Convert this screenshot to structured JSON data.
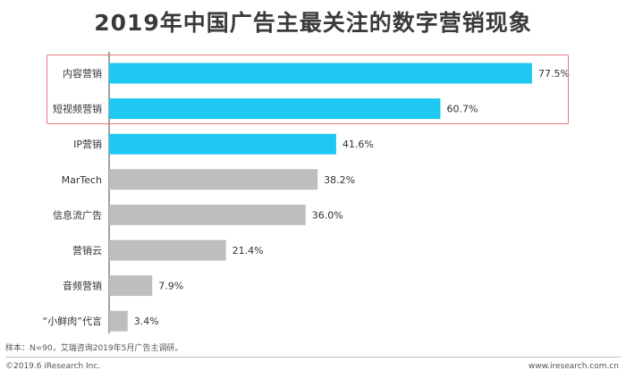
{
  "title": "2019年中国广告主最关注的数字营销现象",
  "note": "样本：N=90，艾瑞咨询2019年5月广告主调研。",
  "copyright": "©2019.6 iResearch Inc.",
  "website": "www.iresearch.com.cn",
  "colors": {
    "highlight_bar": "#1ec8f0",
    "normal_bar": "#bfbdbe",
    "highlight_box": "#e8797f",
    "axis": "#444444"
  },
  "chart_data": {
    "type": "bar",
    "orientation": "horizontal",
    "categories": [
      "内容营销",
      "短视频营销",
      "IP营销",
      "MarTech",
      "信息流广告",
      "营销云",
      "音频营销",
      "“小鲜肉”代言"
    ],
    "values": [
      77.5,
      60.7,
      41.6,
      38.2,
      36.0,
      21.4,
      7.9,
      3.4
    ],
    "data_labels": [
      "77.5%",
      "60.7%",
      "41.6%",
      "38.2%",
      "36.0%",
      "21.4%",
      "7.9%",
      "3.4%"
    ],
    "highlighted": [
      true,
      true,
      true,
      false,
      false,
      false,
      false,
      false
    ],
    "boxed": [
      true,
      true,
      false,
      false,
      false,
      false,
      false,
      false
    ],
    "xlim": [
      0,
      80
    ],
    "grid": false,
    "legend": "none"
  }
}
